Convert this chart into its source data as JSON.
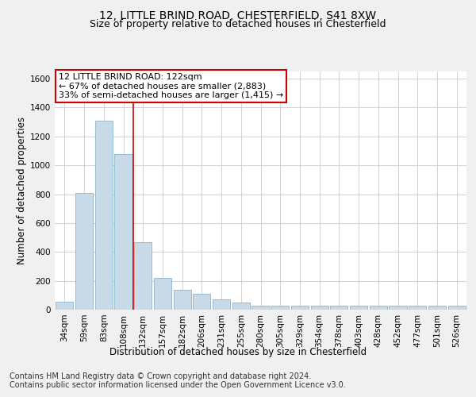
{
  "title": "12, LITTLE BRIND ROAD, CHESTERFIELD, S41 8XW",
  "subtitle": "Size of property relative to detached houses in Chesterfield",
  "xlabel": "Distribution of detached houses by size in Chesterfield",
  "ylabel": "Number of detached properties",
  "bar_color": "#c8d9e8",
  "bar_edge_color": "#8ab4cc",
  "categories": [
    "34sqm",
    "59sqm",
    "83sqm",
    "108sqm",
    "132sqm",
    "157sqm",
    "182sqm",
    "206sqm",
    "231sqm",
    "255sqm",
    "280sqm",
    "305sqm",
    "329sqm",
    "354sqm",
    "378sqm",
    "403sqm",
    "428sqm",
    "452sqm",
    "477sqm",
    "501sqm",
    "526sqm"
  ],
  "values": [
    55,
    810,
    1310,
    1080,
    470,
    220,
    140,
    110,
    70,
    50,
    25,
    25,
    25,
    25,
    25,
    25,
    25,
    25,
    25,
    25,
    25
  ],
  "ylim": [
    0,
    1650
  ],
  "yticks": [
    0,
    200,
    400,
    600,
    800,
    1000,
    1200,
    1400,
    1600
  ],
  "property_line_x": 3.5,
  "annotation_title": "12 LITTLE BRIND ROAD: 122sqm",
  "annotation_line1": "← 67% of detached houses are smaller (2,883)",
  "annotation_line2": "33% of semi-detached houses are larger (1,415) →",
  "footnote1": "Contains HM Land Registry data © Crown copyright and database right 2024.",
  "footnote2": "Contains public sector information licensed under the Open Government Licence v3.0.",
  "background_color": "#f0f0f0",
  "plot_background": "#ffffff",
  "grid_color": "#cccccc",
  "annotation_box_color": "#cc0000",
  "title_fontsize": 10,
  "subtitle_fontsize": 9,
  "axis_label_fontsize": 8.5,
  "tick_fontsize": 7.5,
  "annotation_fontsize": 8,
  "footnote_fontsize": 7
}
